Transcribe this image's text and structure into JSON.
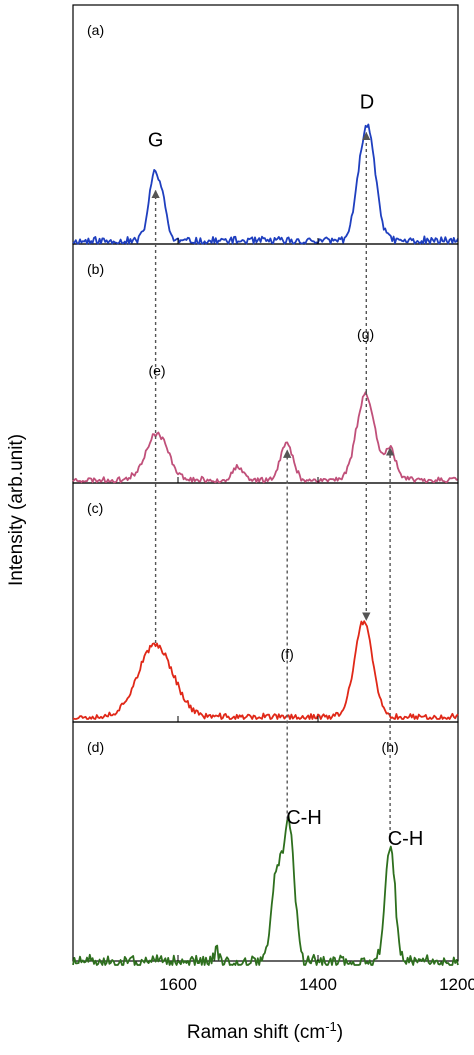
{
  "chart_data": {
    "type": "line",
    "xlabel": "Raman shift (cm",
    "xlabel_sup": "-1",
    "xlabel_end": ")",
    "ylabel": "Intensity (arb.unit)",
    "xlim": [
      1750,
      1200
    ],
    "xticks": [
      1600,
      1400,
      1200
    ],
    "xtick_labels": [
      "1600",
      "1400",
      "1200"
    ],
    "grid": false,
    "panels": [
      {
        "label": "(a)",
        "color": "#1f3fbf",
        "noise": 0.03,
        "seed": 11,
        "peaks": [
          {
            "x": 1632,
            "h": 0.56,
            "w": 9
          },
          {
            "x": 1618,
            "h": 0.1,
            "w": 5
          },
          {
            "x": 1330,
            "h": 0.92,
            "w": 12
          }
        ],
        "annotations": [
          {
            "text": "G",
            "x": 1632,
            "y": 0.75,
            "size": "peak"
          },
          {
            "text": "D",
            "x": 1330,
            "y": 1.05,
            "size": "peak"
          }
        ]
      },
      {
        "label": "(b)",
        "color": "#c0507a",
        "noise": 0.025,
        "seed": 23,
        "peaks": [
          {
            "x": 1630,
            "h": 0.42,
            "w": 16
          },
          {
            "x": 1515,
            "h": 0.12,
            "w": 7
          },
          {
            "x": 1445,
            "h": 0.33,
            "w": 9
          },
          {
            "x": 1332,
            "h": 0.78,
            "w": 13
          },
          {
            "x": 1297,
            "h": 0.28,
            "w": 8
          }
        ],
        "annotations": [
          {
            "text": "(e)",
            "x": 1630,
            "y": 0.95,
            "size": "small"
          },
          {
            "text": "(g)",
            "x": 1332,
            "y": 1.28,
            "size": "small"
          }
        ]
      },
      {
        "label": "(c)",
        "color": "#e02818",
        "noise": 0.03,
        "seed": 37,
        "peaks": [
          {
            "x": 1632,
            "h": 0.72,
            "w": 25
          },
          {
            "x": 1335,
            "h": 0.95,
            "w": 13
          }
        ],
        "annotations": [
          {
            "text": "(f)",
            "x": 1444,
            "y": 0.58,
            "size": "small"
          }
        ]
      },
      {
        "label": "(d)",
        "color": "#2e6f1e",
        "noise": 0.04,
        "seed": 51,
        "peaks": [
          {
            "x": 1460,
            "h": 0.55,
            "w": 7
          },
          {
            "x": 1442,
            "h": 0.93,
            "w": 8
          },
          {
            "x": 1297,
            "h": 0.78,
            "w": 7
          },
          {
            "x": 1545,
            "h": 0.1,
            "w": 3
          }
        ],
        "annotations": [
          {
            "text": "C-H",
            "x": 1420,
            "y": 0.92,
            "size": "peak"
          },
          {
            "text": "C-H",
            "x": 1275,
            "y": 0.78,
            "size": "peak"
          },
          {
            "text": "(h)",
            "x": 1297,
            "y": 1.4,
            "size": "small"
          }
        ]
      }
    ],
    "arrows": [
      {
        "name": "arrow-e",
        "x": 1632,
        "from": {
          "panel": 2,
          "y": 0.74
        },
        "to": {
          "panel": 0,
          "y": 0.4
        }
      },
      {
        "name": "arrow-g",
        "x": 1331,
        "from": {
          "panel": 1,
          "y": 0.8
        },
        "to": {
          "panel": 0,
          "y": 0.86
        }
      },
      {
        "name": "arrow-g2",
        "x": 1331,
        "from": {
          "panel": 1,
          "y": 0.8
        },
        "to": {
          "panel": 2,
          "y": 0.97
        }
      },
      {
        "name": "arrow-f",
        "x": 1444,
        "from": {
          "panel": 3,
          "y": 0.95
        },
        "to": {
          "panel": 1,
          "y": 0.27
        }
      },
      {
        "name": "arrow-h",
        "x": 1297,
        "from": {
          "panel": 3,
          "y": 0.8
        },
        "to": {
          "panel": 1,
          "y": 0.29
        }
      }
    ]
  }
}
